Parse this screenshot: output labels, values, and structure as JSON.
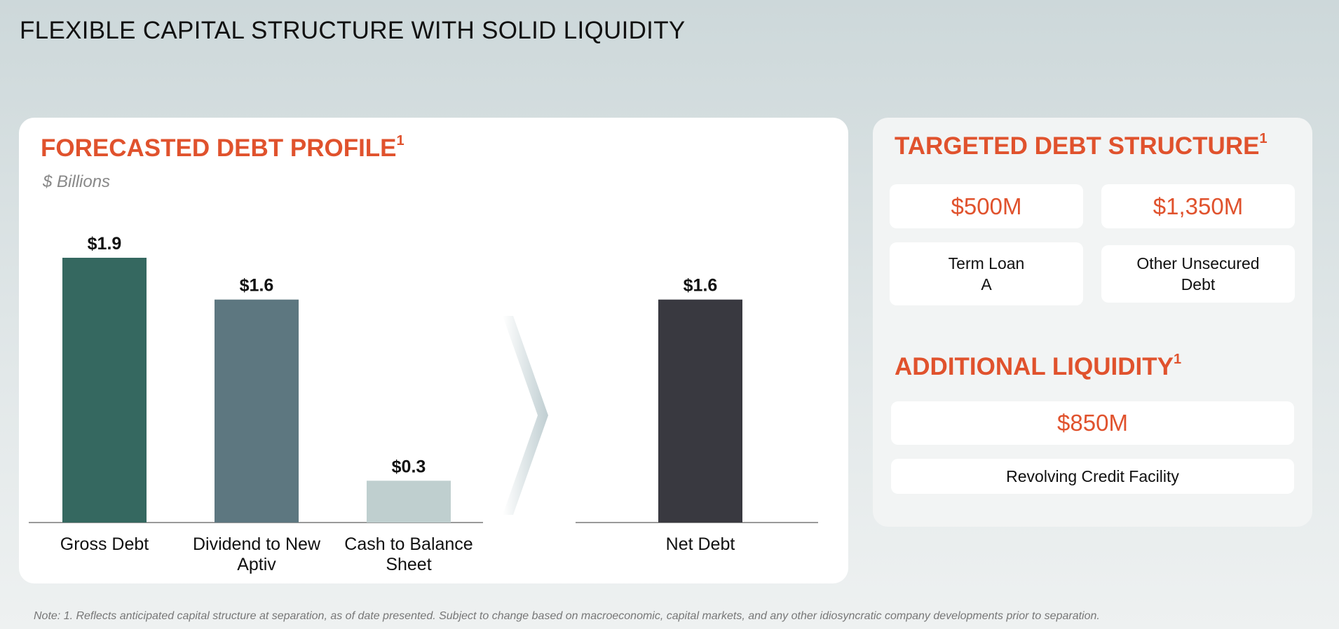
{
  "page_title": "FLEXIBLE CAPITAL STRUCTURE WITH SOLID LIQUIDITY",
  "left_panel": {
    "title": "FORECASTED DEBT PROFILE",
    "title_sup": "1",
    "units": "$ Billions"
  },
  "chart_data": {
    "type": "bar",
    "title": "FORECASTED DEBT PROFILE",
    "ylabel": "$ Billions",
    "xlabel": "",
    "ylim": [
      0,
      1.9
    ],
    "groups": [
      {
        "categories": [
          "Gross Debt",
          "Dividend to New Aptiv",
          "Cash to Balance Sheet"
        ],
        "category_lines": [
          [
            "Gross Debt"
          ],
          [
            "Dividend to New",
            "Aptiv"
          ],
          [
            "Cash to Balance",
            "Sheet"
          ]
        ],
        "values": [
          1.9,
          1.6,
          0.3
        ],
        "value_labels": [
          "$1.9",
          "$1.6",
          "$0.3"
        ],
        "colors": [
          "#356860",
          "#5d7780",
          "#bfcfcf"
        ]
      },
      {
        "categories": [
          "Net Debt"
        ],
        "category_lines": [
          [
            "Net Debt"
          ]
        ],
        "values": [
          1.6
        ],
        "value_labels": [
          "$1.6"
        ],
        "colors": [
          "#393940"
        ]
      }
    ]
  },
  "right_panel": {
    "targeted": {
      "title": "TARGETED DEBT STRUCTURE",
      "title_sup": "1",
      "items": [
        {
          "amount": "$500M",
          "line1": "Term Loan",
          "line2": "A"
        },
        {
          "amount": "$1,350M",
          "line1": "Other Unsecured",
          "line2": "Debt"
        }
      ]
    },
    "liquidity": {
      "title": "ADDITIONAL LIQUIDITY",
      "title_sup": "1",
      "amount": "$850M",
      "label": "Revolving Credit Facility"
    }
  },
  "note": "Note: 1. Reflects anticipated capital structure at separation, as of date presented. Subject to change based on macroeconomic, capital markets, and any other idiosyncratic company developments prior to separation."
}
